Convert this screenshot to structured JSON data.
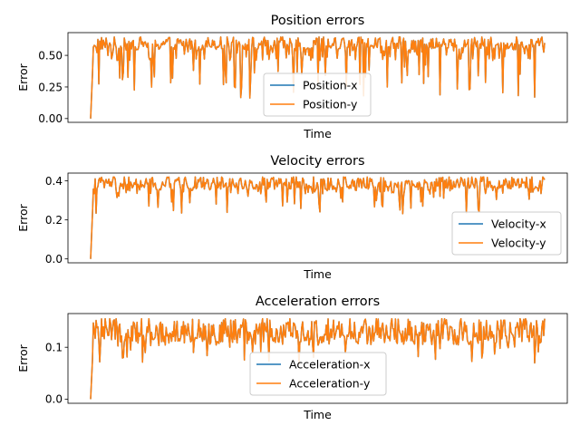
{
  "chart_data": [
    {
      "type": "line",
      "title": "Position errors",
      "xlabel": "Time",
      "ylabel": "Error",
      "ylim": [
        -0.03,
        0.68
      ],
      "yticks": [
        "0.00",
        "0.25",
        "0.50"
      ],
      "ytick_values": [
        0.0,
        0.25,
        0.5
      ],
      "xticks_visible": false,
      "legend": "lower-center",
      "n_points": 500,
      "series": [
        {
          "name": "Position-x",
          "color": "#1f77b4",
          "start": 0.0,
          "rise_steps": 3,
          "base": 0.58,
          "high": 0.645,
          "dip_min": 0.16
        },
        {
          "name": "Position-y",
          "color": "#ff7f0e",
          "start": 0.0,
          "rise_steps": 3,
          "base": 0.58,
          "high": 0.645,
          "dip_min": 0.16
        }
      ]
    },
    {
      "type": "line",
      "title": "Velocity errors",
      "xlabel": "Time",
      "ylabel": "Error",
      "ylim": [
        -0.02,
        0.44
      ],
      "yticks": [
        "0.0",
        "0.2",
        "0.4"
      ],
      "ytick_values": [
        0.0,
        0.2,
        0.4
      ],
      "xticks_visible": false,
      "legend": "lower-right",
      "n_points": 500,
      "series": [
        {
          "name": "Velocity-x",
          "color": "#1f77b4",
          "start": 0.0,
          "rise_steps": 3,
          "base": 0.38,
          "high": 0.42,
          "dip_min": 0.23
        },
        {
          "name": "Velocity-y",
          "color": "#ff7f0e",
          "start": 0.0,
          "rise_steps": 3,
          "base": 0.38,
          "high": 0.42,
          "dip_min": 0.23
        }
      ]
    },
    {
      "type": "line",
      "title": "Acceleration errors",
      "xlabel": "Time",
      "ylabel": "Error",
      "ylim": [
        -0.008,
        0.165
      ],
      "yticks": [
        "0.0",
        "0.1"
      ],
      "ytick_values": [
        0.0,
        0.1
      ],
      "xticks_visible": false,
      "legend": "lower-center",
      "n_points": 500,
      "series": [
        {
          "name": "Acceleration-x",
          "color": "#1f77b4",
          "start": 0.0,
          "rise_steps": 3,
          "base": 0.125,
          "high": 0.155,
          "dip_min": 0.067
        },
        {
          "name": "Acceleration-y",
          "color": "#ff7f0e",
          "start": 0.0,
          "rise_steps": 3,
          "base": 0.125,
          "high": 0.155,
          "dip_min": 0.067
        }
      ]
    }
  ]
}
